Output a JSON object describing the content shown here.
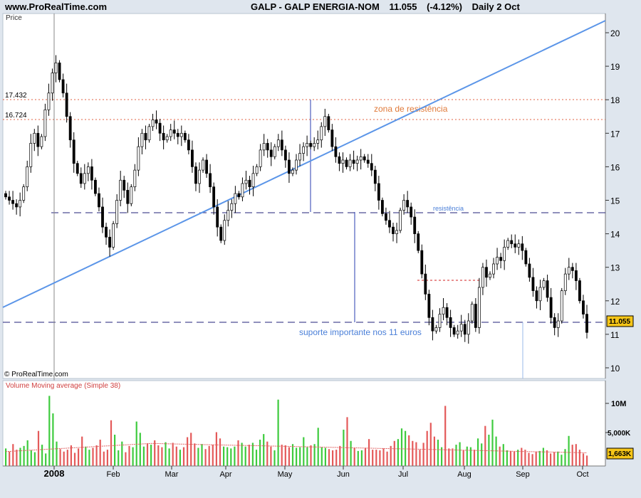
{
  "header": {
    "site": "www.ProRealTime.com",
    "instrument": "GALP - GALP ENERGIA-NOM",
    "price": "11.055",
    "change": "(-4.12%)",
    "period": "Daily  2 Oct"
  },
  "price_panel": {
    "label": "Price",
    "copyright": "© ProRealTime.com",
    "level_labels": [
      "17.432",
      "16.724"
    ],
    "annotations": {
      "resistance_zone": "zona de resistência",
      "resistance": "resistência",
      "support": "suporte importante nos 11 euros"
    },
    "last_value": "11.055"
  },
  "volume_panel": {
    "label": "Volume Moving average (Simple 38)",
    "tick_labels": [
      "10M",
      "5,000K"
    ],
    "last_value": "1,663K"
  },
  "colors": {
    "up": "#3ecb3e",
    "down": "#e45a5a",
    "candle_up_fill": "#ffffff",
    "candle_down_fill": "#000000",
    "trendline": "#5b95e8",
    "resistance_zone": "#e06040",
    "support_line": "#22227a",
    "annotation_blue": "#4a7fd8",
    "annotation_orange": "#e07a3a",
    "background": "#dfe6ee",
    "plot": "#ffffff"
  },
  "chart_data": [
    {
      "type": "candlestick",
      "title": "GALP - GALP ENERGIA-NOM",
      "ylabel": "Price",
      "ylim": [
        9.8,
        20.4
      ],
      "y_ticks": [
        10,
        11,
        12,
        13,
        14,
        15,
        16,
        17,
        18,
        19,
        20
      ],
      "x_tick_labels": [
        "2008",
        "Feb",
        "Mar",
        "Apr",
        "May",
        "Jun",
        "Jul",
        "Aug",
        "Sep",
        "Oct"
      ],
      "grid": false,
      "series": [
        {
          "values": [
            15.1,
            15.0,
            14.9,
            14.8,
            15.0,
            15.4,
            16.0,
            16.7,
            17.0,
            16.6,
            16.9,
            17.7,
            18.2,
            18.8,
            19.1,
            18.6,
            18.2,
            17.5,
            16.8,
            16.1,
            15.8,
            15.5,
            15.8,
            16.0,
            15.6,
            15.2,
            14.8,
            14.2,
            13.9,
            13.6,
            14.3,
            15.0,
            15.6,
            15.3,
            14.9,
            15.4,
            15.9,
            16.6,
            17.0,
            16.8,
            17.2,
            17.4,
            17.3,
            17.0,
            16.8,
            16.9,
            17.1,
            17.0,
            16.9,
            17.0,
            16.8,
            16.5,
            16.0,
            15.5,
            15.9,
            16.2,
            15.8,
            15.4,
            14.8,
            14.2,
            13.8,
            14.4,
            14.7,
            14.9,
            15.2,
            15.1,
            15.5,
            15.6,
            15.4,
            15.8,
            16.0,
            16.5,
            16.7,
            16.5,
            16.3,
            16.6,
            16.8,
            16.5,
            16.2,
            15.8,
            15.9,
            16.2,
            16.4,
            16.6,
            16.7,
            16.6,
            16.7,
            16.8,
            17.2,
            17.5,
            17.1,
            16.6,
            16.3,
            16.1,
            16.2,
            16.0,
            16.2,
            16.1,
            16.2,
            16.3,
            16.2,
            16.1,
            15.9,
            15.5,
            15.0,
            14.6,
            14.4,
            14.2,
            14.0,
            14.1,
            14.7,
            15.0,
            14.8,
            14.5,
            14.0,
            13.5,
            12.8,
            12.2,
            11.5,
            11.1,
            11.2,
            11.6,
            11.8,
            11.5,
            11.2,
            11.0,
            11.1,
            11.3,
            11.0,
            11.4,
            11.9,
            11.2,
            12.4,
            13.0,
            12.7,
            12.8,
            13.1,
            13.3,
            13.2,
            13.6,
            13.8,
            13.7,
            13.6,
            13.7,
            13.5,
            13.1,
            12.7,
            12.3,
            12.0,
            12.4,
            12.6,
            12.1,
            11.5,
            11.2,
            11.4,
            12.3,
            12.8,
            13.0,
            12.9,
            12.6,
            12.0,
            11.6,
            11.055
          ],
          "dates": "daily, Jan 2008 - 2 Oct 2008"
        }
      ],
      "horizontal_levels": [
        {
          "value": 17.432,
          "style": "dotted",
          "name": "17.432"
        },
        {
          "value": 16.724,
          "style": "dotted",
          "name": "16.724"
        },
        {
          "value": 13.8,
          "style": "dashed"
        },
        {
          "value": 11.0,
          "style": "dashed"
        }
      ],
      "trendline": {
        "from": {
          "date": "2008-01-01",
          "price": 11.2
        },
        "to": {
          "date": "2008-10-02",
          "price": 20.4
        }
      }
    },
    {
      "type": "bar",
      "title": "Volume Moving average (Simple 38)",
      "ylim": [
        0,
        13000
      ],
      "unit": "K",
      "values": [
        2800,
        2300,
        3500,
        2600,
        2900,
        3200,
        4100,
        2500,
        2200,
        5600,
        3400,
        2000,
        11200,
        8400,
        3900,
        2700,
        2300,
        2600,
        3300,
        2100,
        2800,
        4700,
        3100,
        2600,
        2900,
        3300,
        4200,
        2300,
        2600,
        7300,
        5000,
        2500,
        3900,
        2200,
        3200,
        3000,
        7100,
        5300,
        3100,
        3600,
        3400,
        4100,
        3300,
        3000,
        3800,
        2800,
        3700,
        3100,
        2600,
        3000,
        4600,
        5300,
        3600,
        2900,
        3500,
        2700,
        3200,
        3400,
        5400,
        4400,
        3100,
        3000,
        2800,
        3100,
        4100,
        3700,
        3100,
        3400,
        3700,
        2600,
        4200,
        5100,
        3900,
        3100,
        2500,
        10600,
        3400,
        3300,
        3000,
        3500,
        2900,
        3000,
        4600,
        3000,
        3300,
        3500,
        6100,
        3000,
        2900,
        2700,
        2500,
        2600,
        3200,
        5800,
        7800,
        4000,
        2900,
        2400,
        2500,
        2900,
        4300,
        2600,
        2600,
        2500,
        2800,
        2300,
        3200,
        4000,
        4300,
        6000,
        5600,
        4900,
        4000,
        3800,
        2600,
        3700,
        5600,
        6900,
        4700,
        4200,
        3000,
        9600,
        2800,
        2800,
        3400,
        3800,
        2500,
        3100,
        3000,
        2600,
        4400,
        3600,
        6400,
        5000,
        7400,
        4700,
        3100,
        3500,
        2500,
        2400,
        2300,
        2600,
        2900,
        2600,
        2100,
        1900,
        2300,
        2400,
        2900,
        2500,
        2000,
        2200,
        2300,
        1800,
        2700,
        4800,
        3400,
        3500,
        2600,
        2000,
        1663
      ],
      "moving_average": {
        "name": "Simple 38",
        "start": 2300,
        "peak": 3600,
        "end": 2100
      }
    }
  ]
}
